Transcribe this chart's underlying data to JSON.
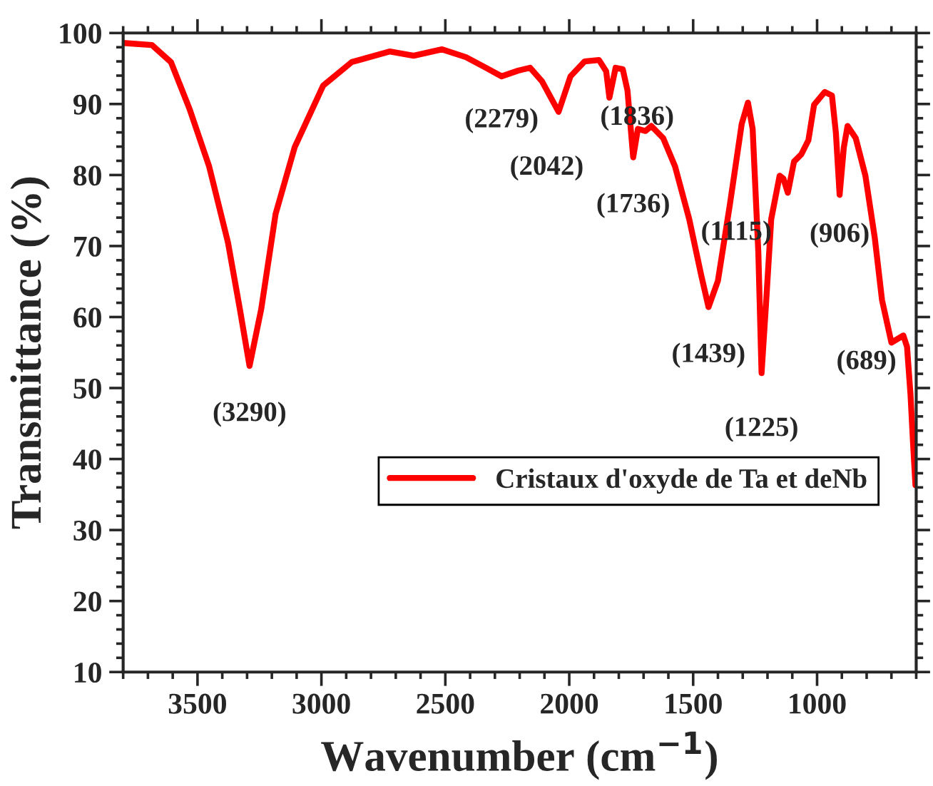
{
  "chart_data": {
    "type": "line",
    "xlabel": "Wavenumber (cm$^{−1}$)",
    "ylabel": "Transmittance (%)",
    "xlim": [
      3800,
      600
    ],
    "xticks": [
      3500,
      3000,
      2500,
      2000,
      1500,
      1000
    ],
    "ylim": [
      10,
      100
    ],
    "yticks": [
      10,
      20,
      30,
      40,
      50,
      60,
      70,
      80,
      90,
      100
    ],
    "grid": false,
    "legend": "lower right",
    "marker": "none",
    "line_style": "solid",
    "series": [
      {
        "name": "Cristaux d'oxyde de Ta et deNb",
        "color": "#ff0000",
        "x": [
          3800,
          3684,
          3607,
          3531,
          3453,
          3377,
          3329,
          3290,
          3243,
          3185,
          3108,
          2993,
          2878,
          2725,
          2628,
          2513,
          2417,
          2341,
          2273,
          2206,
          2158,
          2110,
          2043,
          1995,
          1938,
          1880,
          1851,
          1838,
          1813,
          1784,
          1765,
          1742,
          1723,
          1692,
          1669,
          1621,
          1573,
          1516,
          1467,
          1438,
          1400,
          1352,
          1304,
          1279,
          1260,
          1237,
          1224,
          1205,
          1185,
          1151,
          1136,
          1118,
          1093,
          1064,
          1035,
          1012,
          969,
          940,
          924,
          909,
          892,
          877,
          844,
          805,
          767,
          738,
          700,
          652,
          637,
          623,
          613,
          603
        ],
        "values": [
          98.6,
          98.3,
          95.9,
          89.2,
          81.2,
          70.5,
          61.1,
          53.1,
          61.1,
          74.5,
          83.9,
          92.6,
          95.9,
          97.4,
          96.8,
          97.7,
          96.6,
          95.2,
          93.9,
          94.7,
          95.1,
          93.2,
          88.9,
          93.9,
          96.0,
          96.2,
          94.6,
          90.9,
          95.1,
          94.9,
          91.9,
          82.5,
          86.5,
          86.2,
          86.9,
          85.2,
          81.2,
          73.8,
          65.8,
          61.4,
          65.1,
          75.8,
          87.2,
          90.2,
          86.5,
          69.1,
          52.1,
          62.4,
          73.8,
          79.9,
          79.5,
          77.5,
          81.9,
          82.9,
          84.9,
          89.9,
          91.7,
          91.2,
          85.9,
          77.2,
          83.9,
          86.9,
          85.2,
          79.9,
          71.1,
          62.4,
          56.4,
          57.4,
          55.8,
          49.1,
          42.4,
          36.3
        ]
      }
    ],
    "annotations": [
      {
        "text": "(3290)",
        "x": 3290,
        "y": 53.1
      },
      {
        "text": "(2279)",
        "x": 2273,
        "y": 93.9
      },
      {
        "text": "(2042)",
        "x": 2043,
        "y": 88.9
      },
      {
        "text": "(1836)",
        "x": 1838,
        "y": 90.9
      },
      {
        "text": "(1736)",
        "x": 1742,
        "y": 82.5
      },
      {
        "text": "(1439)",
        "x": 1438,
        "y": 61.4
      },
      {
        "text": "(1225)",
        "x": 1224,
        "y": 52.1
      },
      {
        "text": "(1115)",
        "x": 1118,
        "y": 77.5
      },
      {
        "text": "(906)",
        "x": 909,
        "y": 77.2
      },
      {
        "text": "(689)",
        "x": 689,
        "y": 56.5
      }
    ]
  }
}
